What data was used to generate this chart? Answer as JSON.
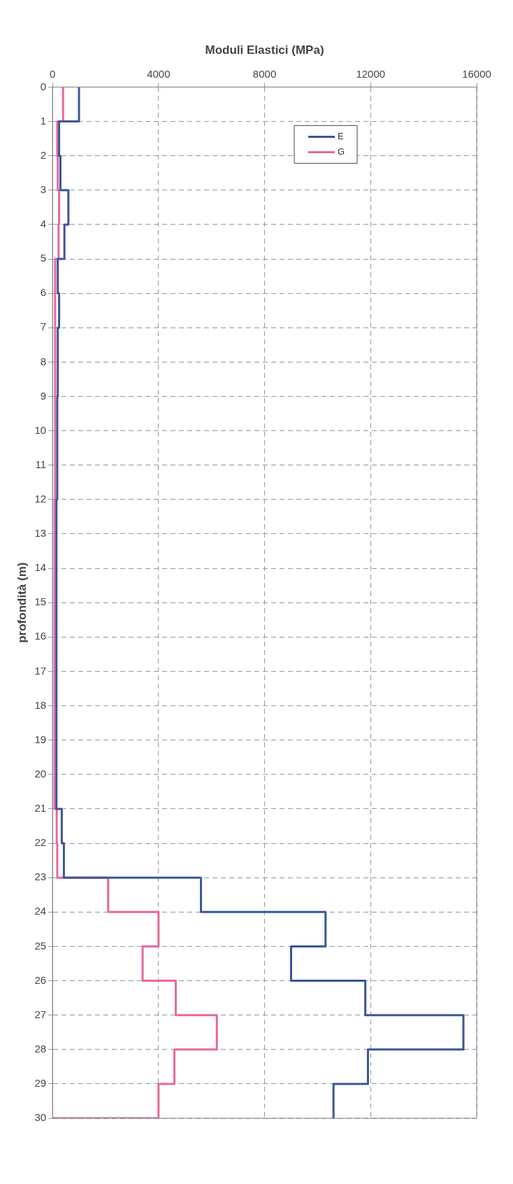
{
  "chart_data": {
    "type": "step",
    "orientation": "horizontal",
    "xlabel": "Moduli Elastici (MPa)",
    "ylabel": "profondità (m)",
    "x": [
      0,
      1,
      2,
      3,
      4,
      5,
      6,
      7,
      8,
      9,
      10,
      11,
      12,
      13,
      14,
      15,
      16,
      17,
      18,
      19,
      20,
      21,
      22,
      23,
      24,
      25,
      26,
      27,
      28,
      29,
      30
    ],
    "series": [
      {
        "name": "E",
        "color": "#3a559c",
        "values": [
          1000,
          250,
          300,
          600,
          450,
          200,
          250,
          200,
          200,
          180,
          180,
          180,
          150,
          150,
          150,
          150,
          150,
          150,
          150,
          150,
          150,
          350,
          430,
          5600,
          10300,
          9000,
          11800,
          15500,
          11900,
          10600,
          10600
        ]
      },
      {
        "name": "G",
        "color": "#e8679f",
        "values": [
          400,
          180,
          200,
          250,
          230,
          100,
          100,
          100,
          100,
          100,
          100,
          100,
          80,
          80,
          80,
          80,
          80,
          80,
          80,
          80,
          80,
          160,
          180,
          2100,
          4000,
          3400,
          4650,
          6200,
          4600,
          4000,
          0
        ]
      }
    ],
    "xlim": [
      0,
      16000
    ],
    "xticks": [
      0,
      4000,
      8000,
      12000,
      16000
    ],
    "ylim": [
      30,
      0
    ],
    "yticks": [
      0,
      1,
      2,
      3,
      4,
      5,
      6,
      7,
      8,
      9,
      10,
      11,
      12,
      13,
      14,
      15,
      16,
      17,
      18,
      19,
      20,
      21,
      22,
      23,
      24,
      25,
      26,
      27,
      28,
      29,
      30
    ],
    "grid": true,
    "legend": "top right",
    "marker": "none",
    "line_style": "solid"
  }
}
